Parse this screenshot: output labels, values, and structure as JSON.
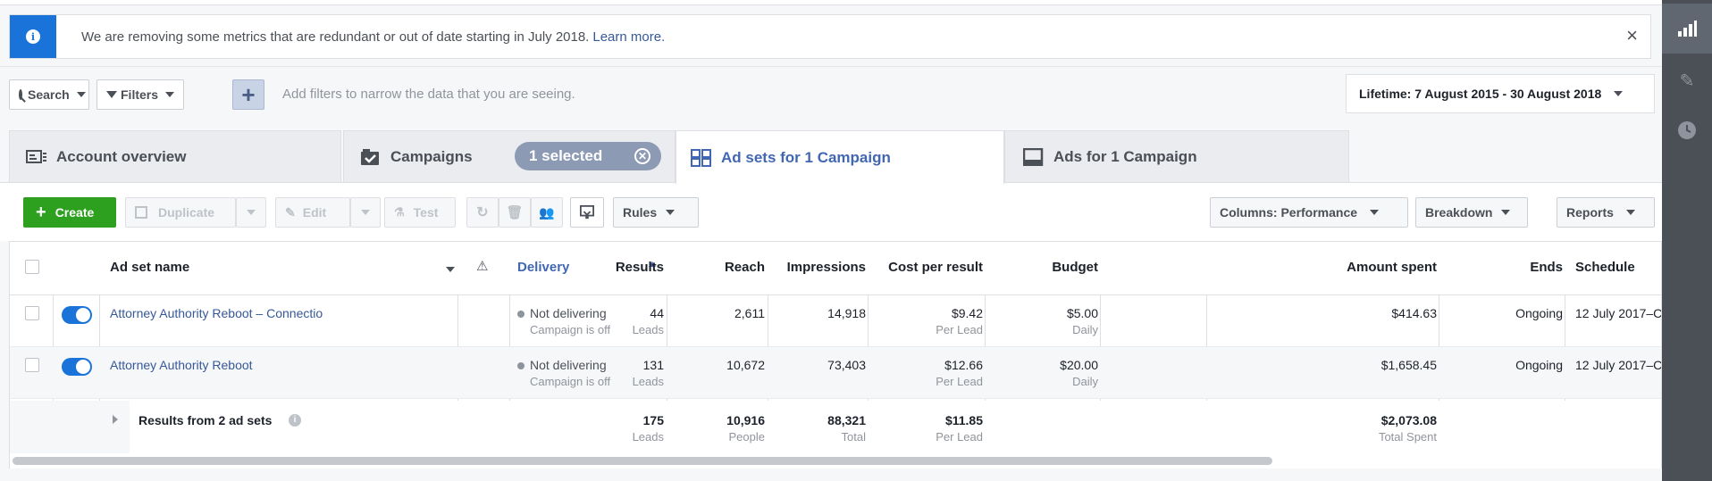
{
  "notice": {
    "text": "We are removing some metrics that are redundant or out of date starting in July 2018.",
    "link": "Learn more.",
    "close": "×"
  },
  "filters": {
    "search_label": "Search",
    "filters_label": "Filters",
    "add_label": "+",
    "hint": "Add filters to narrow the data that you are seeing.",
    "date_range": "Lifetime: 7 August 2015 - 30 August 2018"
  },
  "tabs": {
    "account": "Account overview",
    "campaigns": "Campaigns",
    "selected": "1 selected",
    "adsets": "Ad sets for 1 Campaign",
    "ads": "Ads for 1 Campaign"
  },
  "toolbar": {
    "create": "Create",
    "duplicate": "Duplicate",
    "edit": "Edit",
    "test": "Test",
    "rules": "Rules",
    "columns": "Columns: Performance",
    "breakdown": "Breakdown",
    "reports": "Reports"
  },
  "table": {
    "headers": {
      "name": "Ad set name",
      "delivery": "Delivery",
      "results": "Results",
      "reach": "Reach",
      "impressions": "Impressions",
      "cost": "Cost per result",
      "budget": "Budget",
      "spent": "Amount spent",
      "ends": "Ends",
      "schedule": "Schedule"
    },
    "rows": [
      {
        "name": "Attorney Authority Reboot – Connectio",
        "delivery": "Not delivering",
        "delivery_sub": "Campaign is off",
        "results": "44",
        "results_sub": "Leads",
        "reach": "2,611",
        "impressions": "14,918",
        "cost": "$9.42",
        "cost_sub": "Per Lead",
        "budget": "$5.00",
        "budget_sub": "Daily",
        "spent": "$414.63",
        "ends": "Ongoing",
        "schedule": "12 July 2017–C"
      },
      {
        "name": "Attorney Authority Reboot",
        "delivery": "Not delivering",
        "delivery_sub": "Campaign is off",
        "results": "131",
        "results_sub": "Leads",
        "reach": "10,672",
        "impressions": "73,403",
        "cost": "$12.66",
        "cost_sub": "Per Lead",
        "budget": "$20.00",
        "budget_sub": "Daily",
        "spent": "$1,658.45",
        "ends": "Ongoing",
        "schedule": "12 July 2017–C"
      }
    ],
    "total": {
      "label": "Results from 2 ad sets",
      "results": "175",
      "results_sub": "Leads",
      "reach": "10,916",
      "reach_sub": "People",
      "impressions": "88,321",
      "impressions_sub": "Total",
      "cost": "$11.85",
      "cost_sub": "Per Lead",
      "spent": "$2,073.08",
      "spent_sub": "Total Spent"
    }
  },
  "colors": {
    "accent": "#4267b2",
    "link": "#365899",
    "create": "#2ea01f",
    "toggle": "#1a73d9"
  }
}
